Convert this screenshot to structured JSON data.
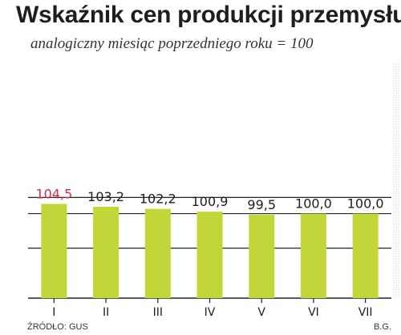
{
  "colors": {
    "bar": "#c2d63a",
    "highlight_label": "#d22c4a",
    "text": "#1e1e1e"
  },
  "chart_data": {
    "type": "bar",
    "title": "Wskaźnik cen produkcji przemysłu",
    "subtitle": "analogiczny miesiąc poprzedniego roku = 100",
    "categories": [
      "I",
      "II",
      "III",
      "IV",
      "V",
      "VI",
      "VII"
    ],
    "values": [
      104.5,
      103.2,
      102.2,
      100.9,
      99.5,
      100.0,
      100.0
    ],
    "value_labels": [
      "104,5",
      "103,2",
      "102,2",
      "100,9",
      "99,5",
      "100,0",
      "100,0"
    ],
    "highlight_index": 0,
    "xlabel": "",
    "ylabel": "",
    "grid": true
  },
  "footer": {
    "source": "ŹRÓDŁO: GUS",
    "author": "B.G."
  }
}
